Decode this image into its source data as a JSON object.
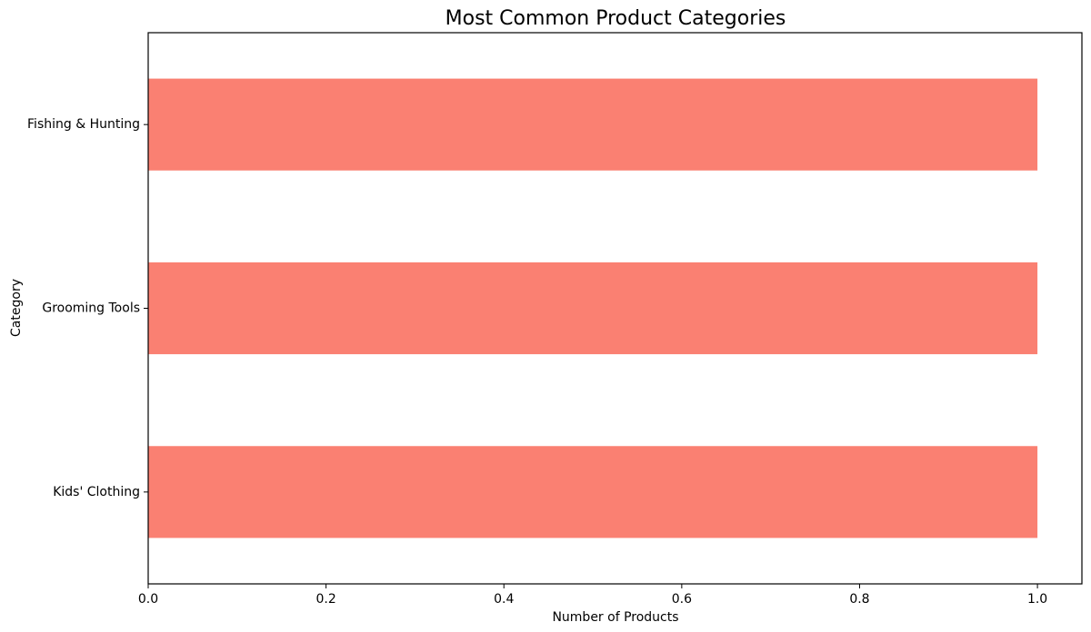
{
  "chart_data": {
    "type": "bar",
    "orientation": "horizontal",
    "title": "Most Common Product Categories",
    "xlabel": "Number of Products",
    "ylabel": "Category",
    "categories": [
      "Fishing & Hunting",
      "Grooming Tools",
      "Kids' Clothing"
    ],
    "values": [
      1,
      1,
      1
    ],
    "xlim": [
      0,
      1.05
    ],
    "xticks": [
      0.0,
      0.2,
      0.4,
      0.6,
      0.8,
      1.0
    ],
    "xtick_labels": [
      "0.0",
      "0.2",
      "0.4",
      "0.6",
      "0.8",
      "1.0"
    ],
    "bar_color": "#fa8072",
    "grid": false,
    "legend": "none"
  }
}
